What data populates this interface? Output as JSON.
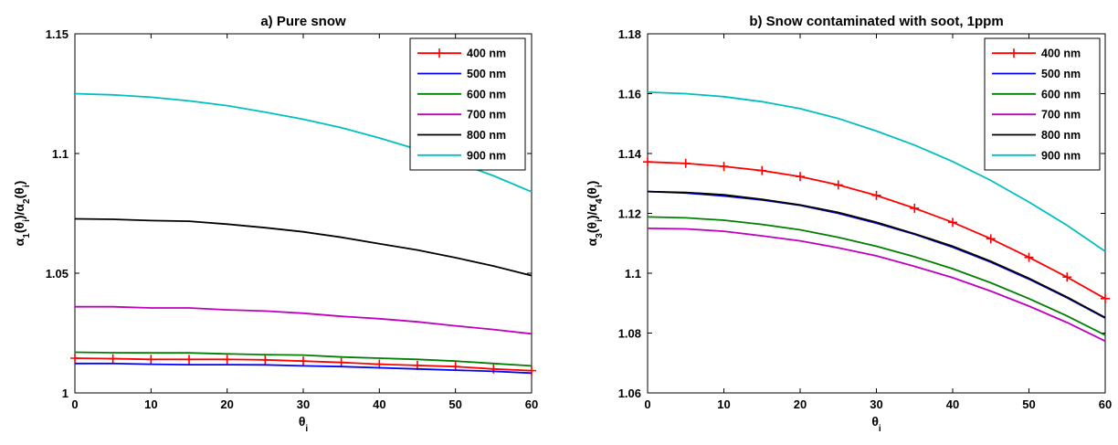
{
  "chart_data": [
    {
      "type": "line",
      "title": "a) Pure snow",
      "xlabel": "θi",
      "ylabel": "α1(θi)/α2(θi)",
      "xlim": [
        0,
        60
      ],
      "ylim": [
        1,
        1.15
      ],
      "xticks": [
        0,
        10,
        20,
        30,
        40,
        50,
        60
      ],
      "yticks": [
        1,
        1.05,
        1.1,
        1.15
      ],
      "ytick_labels": [
        "1",
        "1.05",
        "1.1",
        "1.15"
      ],
      "grid": false,
      "legend": "top-right",
      "x": [
        0,
        5,
        10,
        15,
        20,
        25,
        30,
        35,
        40,
        45,
        50,
        55,
        60
      ],
      "series": [
        {
          "name": "400 nm",
          "color": "#ff0000",
          "marker": "plus",
          "values": [
            1.0145,
            1.0143,
            1.014,
            1.014,
            1.014,
            1.0138,
            1.0133,
            1.0127,
            1.012,
            1.0115,
            1.011,
            1.01,
            1.0093
          ]
        },
        {
          "name": "500 nm",
          "color": "#0000ff",
          "marker": "none",
          "values": [
            1.0123,
            1.0123,
            1.012,
            1.0118,
            1.0118,
            1.0117,
            1.0113,
            1.011,
            1.0105,
            1.01,
            1.0095,
            1.009,
            1.0083
          ]
        },
        {
          "name": "600 nm",
          "color": "#008000",
          "marker": "none",
          "values": [
            1.017,
            1.0168,
            1.0167,
            1.0167,
            1.0163,
            1.016,
            1.0158,
            1.015,
            1.0145,
            1.014,
            1.0133,
            1.0123,
            1.0113
          ]
        },
        {
          "name": "700 nm",
          "color": "#bf00bf",
          "marker": "none",
          "values": [
            1.036,
            1.036,
            1.0355,
            1.0355,
            1.0347,
            1.0342,
            1.0333,
            1.032,
            1.031,
            1.0297,
            1.028,
            1.0265,
            1.0247
          ]
        },
        {
          "name": "800 nm",
          "color": "#000000",
          "marker": "none",
          "values": [
            1.0727,
            1.0725,
            1.072,
            1.0717,
            1.0705,
            1.069,
            1.0673,
            1.065,
            1.0623,
            1.0597,
            1.0565,
            1.053,
            1.049
          ]
        },
        {
          "name": "900 nm",
          "color": "#00bfbf",
          "marker": "none",
          "values": [
            1.125,
            1.1245,
            1.1235,
            1.122,
            1.12,
            1.1173,
            1.1143,
            1.1108,
            1.1065,
            1.1017,
            1.0965,
            1.0907,
            1.084
          ]
        }
      ]
    },
    {
      "type": "line",
      "title": "b) Snow contaminated with soot, 1ppm",
      "xlabel": "θi",
      "ylabel": "α3(θi)/α4(θi)",
      "xlim": [
        0,
        60
      ],
      "ylim": [
        1.06,
        1.18
      ],
      "xticks": [
        0,
        10,
        20,
        30,
        40,
        50,
        60
      ],
      "yticks": [
        1.06,
        1.08,
        1.1,
        1.12,
        1.14,
        1.16,
        1.18
      ],
      "ytick_labels": [
        "1.06",
        "1.08",
        "1.1",
        "1.12",
        "1.14",
        "1.16",
        "1.18"
      ],
      "grid": false,
      "legend": "top-right",
      "x": [
        0,
        5,
        10,
        15,
        20,
        25,
        30,
        35,
        40,
        45,
        50,
        55,
        60
      ],
      "series": [
        {
          "name": "400 nm",
          "color": "#ff0000",
          "marker": "plus",
          "values": [
            1.1372,
            1.1367,
            1.1357,
            1.1343,
            1.1323,
            1.1295,
            1.126,
            1.1217,
            1.117,
            1.1115,
            1.1053,
            1.0987,
            1.0915
          ]
        },
        {
          "name": "500 nm",
          "color": "#0000ff",
          "marker": "none",
          "values": [
            1.1273,
            1.1268,
            1.1258,
            1.1245,
            1.1227,
            1.12,
            1.1167,
            1.113,
            1.1087,
            1.1037,
            1.098,
            1.0918,
            1.085
          ]
        },
        {
          "name": "600 nm",
          "color": "#008000",
          "marker": "none",
          "values": [
            1.1188,
            1.1185,
            1.1177,
            1.1163,
            1.1145,
            1.112,
            1.109,
            1.1055,
            1.1015,
            1.0968,
            1.0915,
            1.0857,
            1.0793
          ]
        },
        {
          "name": "700 nm",
          "color": "#bf00bf",
          "marker": "none",
          "values": [
            1.115,
            1.1148,
            1.114,
            1.1125,
            1.1108,
            1.1085,
            1.1058,
            1.1023,
            1.0985,
            1.094,
            1.089,
            1.0835,
            1.0773
          ]
        },
        {
          "name": "800 nm",
          "color": "#000000",
          "marker": "none",
          "values": [
            1.1273,
            1.127,
            1.1262,
            1.1247,
            1.1228,
            1.1203,
            1.117,
            1.1132,
            1.109,
            1.104,
            1.0983,
            1.092,
            1.0852
          ]
        },
        {
          "name": "900 nm",
          "color": "#00bfbf",
          "marker": "none",
          "values": [
            1.1605,
            1.16,
            1.159,
            1.1573,
            1.155,
            1.1517,
            1.1475,
            1.1428,
            1.1373,
            1.131,
            1.1238,
            1.116,
            1.1073
          ]
        }
      ]
    }
  ]
}
